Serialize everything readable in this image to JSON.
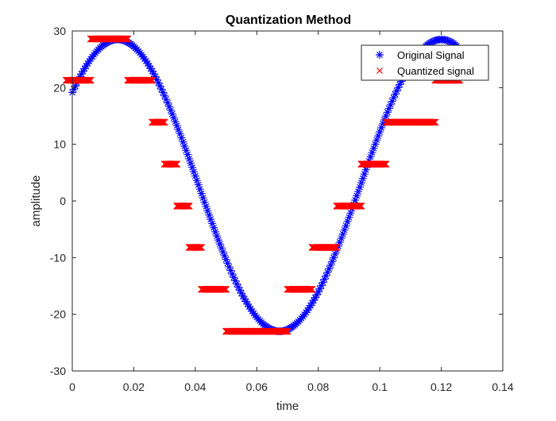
{
  "chart_data": {
    "type": "scatter",
    "title": "Quantization Method",
    "xlabel": "time",
    "ylabel": "amplitude",
    "xlim": [
      0,
      0.14
    ],
    "ylim": [
      -30,
      30
    ],
    "xticks": [
      0,
      0.02,
      0.04,
      0.06,
      0.08,
      0.1,
      0.12,
      0.14
    ],
    "xtick_labels": [
      "0",
      "0.02",
      "0.04",
      "0.06",
      "0.08",
      "0.1",
      "0.12",
      "0.14"
    ],
    "yticks": [
      -30,
      -20,
      -10,
      0,
      10,
      20,
      30
    ],
    "ytick_labels": [
      "-30",
      "-20",
      "-10",
      "0",
      "10",
      "20",
      "30"
    ],
    "grid": false,
    "legend_position": "top-right",
    "series": [
      {
        "name": "Original Signal",
        "marker": "asterisk",
        "color": "#0000ff",
        "signal": {
          "offset": 2.75,
          "amplitude": 25.75,
          "frequency_hz": 9.5,
          "phase_rad": 0.69,
          "x_start": 0,
          "x_end": 0.125,
          "x_step": 0.0005
        }
      },
      {
        "name": "Quantized signal",
        "marker": "x",
        "color": "#ff0000",
        "x": [
          0,
          0.004,
          0.008,
          0.012,
          0.016,
          0.02,
          0.024,
          0.028,
          0.032,
          0.036,
          0.04,
          0.044,
          0.048,
          0.052,
          0.056,
          0.06,
          0.064,
          0.068,
          0.072,
          0.076,
          0.08,
          0.084,
          0.088,
          0.092,
          0.096,
          0.1,
          0.104,
          0.108,
          0.112,
          0.116,
          0.12,
          0.124
        ],
        "y": [
          21.3,
          21.3,
          28.6,
          28.6,
          28.6,
          21.3,
          21.3,
          13.9,
          6.5,
          -0.9,
          -8.2,
          -15.6,
          -15.6,
          -23.0,
          -23.0,
          -23.0,
          -23.0,
          -23.0,
          -15.6,
          -15.6,
          -8.2,
          -8.2,
          -0.9,
          -0.9,
          6.5,
          6.5,
          13.9,
          13.9,
          13.9,
          13.9,
          21.3,
          21.3
        ]
      }
    ]
  }
}
